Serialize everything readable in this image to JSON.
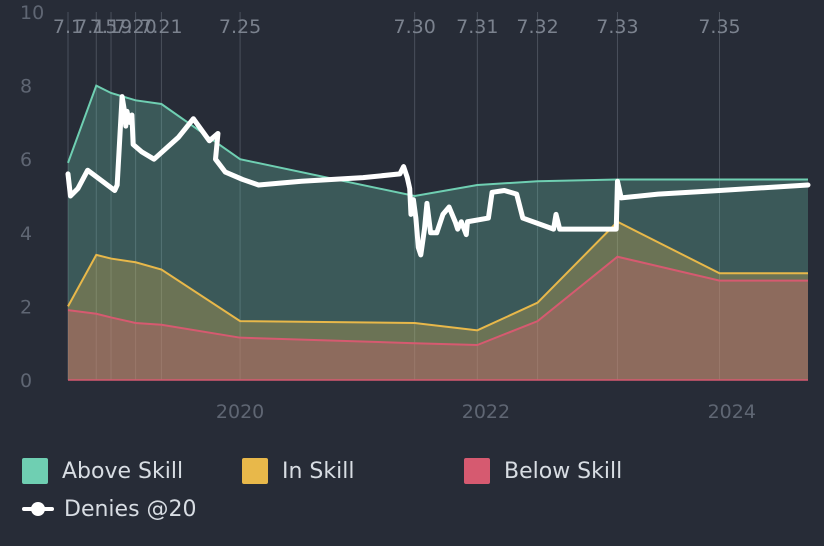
{
  "chart_data": {
    "type": "area",
    "ylim": [
      0,
      10
    ],
    "yticks": [
      "0",
      "2",
      "4",
      "6",
      "8",
      "10"
    ],
    "x_range": [
      2018.6,
      2024.62
    ],
    "x_ticks": [
      {
        "x": 2020.0,
        "label": "2020"
      },
      {
        "x": 2022.0,
        "label": "2022"
      },
      {
        "x": 2024.0,
        "label": "2024"
      }
    ],
    "patches": [
      {
        "x": 2018.6,
        "label": "7.1"
      },
      {
        "x": 2018.83,
        "label": "7.15"
      },
      {
        "x": 2018.95,
        "label": "7.19"
      },
      {
        "x": 2019.15,
        "label": "7.20"
      },
      {
        "x": 2019.36,
        "label": "7.21"
      },
      {
        "x": 2020.0,
        "label": "7.25"
      },
      {
        "x": 2021.42,
        "label": "7.30"
      },
      {
        "x": 2021.93,
        "label": "7.31"
      },
      {
        "x": 2022.42,
        "label": "7.32"
      },
      {
        "x": 2023.07,
        "label": "7.33"
      },
      {
        "x": 2023.9,
        "label": "7.35"
      }
    ],
    "series": [
      {
        "name": "Above Skill",
        "color": "#6fcfb2",
        "fill": "rgba(111,207,178,0.28)",
        "x": [
          2018.6,
          2018.83,
          2018.95,
          2019.15,
          2019.36,
          2020.0,
          2021.42,
          2021.93,
          2022.42,
          2023.07,
          2023.9,
          2024.62
        ],
        "values": [
          5.9,
          8.0,
          7.8,
          7.6,
          7.5,
          6.0,
          5.0,
          5.3,
          5.4,
          5.45,
          5.45,
          5.45
        ]
      },
      {
        "name": "In Skill",
        "color": "#e8b84a",
        "fill": "rgba(232,184,74,0.28)",
        "x": [
          2018.6,
          2018.83,
          2018.95,
          2019.15,
          2019.36,
          2020.0,
          2021.42,
          2021.93,
          2022.42,
          2023.07,
          2023.9,
          2024.62
        ],
        "values": [
          2.0,
          3.4,
          3.3,
          3.2,
          3.0,
          1.6,
          1.55,
          1.35,
          2.1,
          4.3,
          2.9,
          2.9
        ]
      },
      {
        "name": "Below Skill",
        "color": "#d65a70",
        "fill": "rgba(214,90,112,0.32)",
        "x": [
          2018.6,
          2018.83,
          2018.95,
          2019.15,
          2019.36,
          2020.0,
          2021.42,
          2021.93,
          2022.42,
          2023.07,
          2023.9,
          2024.62
        ],
        "values": [
          1.9,
          1.8,
          1.7,
          1.55,
          1.5,
          1.15,
          1.0,
          0.95,
          1.6,
          3.35,
          2.7,
          2.7
        ]
      }
    ],
    "line": {
      "name": "Denies @20",
      "color": "#ffffff",
      "points": [
        [
          2018.6,
          5.6
        ],
        [
          2018.62,
          5.0
        ],
        [
          2018.68,
          5.2
        ],
        [
          2018.76,
          5.7
        ],
        [
          2018.9,
          5.35
        ],
        [
          2018.98,
          5.15
        ],
        [
          2019.0,
          5.3
        ],
        [
          2019.02,
          6.5
        ],
        [
          2019.04,
          7.7
        ],
        [
          2019.06,
          7.3
        ],
        [
          2019.07,
          6.9
        ],
        [
          2019.08,
          7.3
        ],
        [
          2019.1,
          7.0
        ],
        [
          2019.12,
          7.2
        ],
        [
          2019.13,
          6.4
        ],
        [
          2019.2,
          6.2
        ],
        [
          2019.3,
          6.0
        ],
        [
          2019.5,
          6.6
        ],
        [
          2019.62,
          7.1
        ],
        [
          2019.75,
          6.5
        ],
        [
          2019.82,
          6.7
        ],
        [
          2019.8,
          6.0
        ],
        [
          2019.88,
          5.65
        ],
        [
          2020.02,
          5.45
        ],
        [
          2020.15,
          5.3
        ],
        [
          2020.5,
          5.4
        ],
        [
          2021.0,
          5.5
        ],
        [
          2021.3,
          5.6
        ],
        [
          2021.33,
          5.8
        ],
        [
          2021.36,
          5.5
        ],
        [
          2021.38,
          5.2
        ],
        [
          2021.39,
          4.5
        ],
        [
          2021.41,
          4.9
        ],
        [
          2021.43,
          4.4
        ],
        [
          2021.45,
          3.6
        ],
        [
          2021.47,
          3.4
        ],
        [
          2021.5,
          4.1
        ],
        [
          2021.52,
          4.8
        ],
        [
          2021.55,
          4.0
        ],
        [
          2021.6,
          4.0
        ],
        [
          2021.65,
          4.5
        ],
        [
          2021.7,
          4.7
        ],
        [
          2021.75,
          4.3
        ],
        [
          2021.77,
          4.1
        ],
        [
          2021.8,
          4.3
        ],
        [
          2021.84,
          3.95
        ],
        [
          2021.85,
          4.3
        ],
        [
          2022.02,
          4.4
        ],
        [
          2022.05,
          5.1
        ],
        [
          2022.15,
          5.15
        ],
        [
          2022.25,
          5.05
        ],
        [
          2022.3,
          4.4
        ],
        [
          2022.55,
          4.1
        ],
        [
          2022.57,
          4.5
        ],
        [
          2022.6,
          4.1
        ],
        [
          2023.0,
          4.1
        ],
        [
          2023.06,
          4.1
        ],
        [
          2023.07,
          5.4
        ],
        [
          2023.1,
          4.95
        ],
        [
          2023.4,
          5.05
        ],
        [
          2023.9,
          5.15
        ],
        [
          2024.62,
          5.3
        ]
      ]
    },
    "legend": [
      {
        "label": "Above Skill",
        "color": "#6fcfb2",
        "type": "area"
      },
      {
        "label": "In Skill",
        "color": "#e8b84a",
        "type": "area"
      },
      {
        "label": "Below Skill",
        "color": "#d65a70",
        "type": "area"
      },
      {
        "label": "Denies @20",
        "color": "#ffffff",
        "type": "line"
      }
    ],
    "legend_position": "bottom-left"
  }
}
